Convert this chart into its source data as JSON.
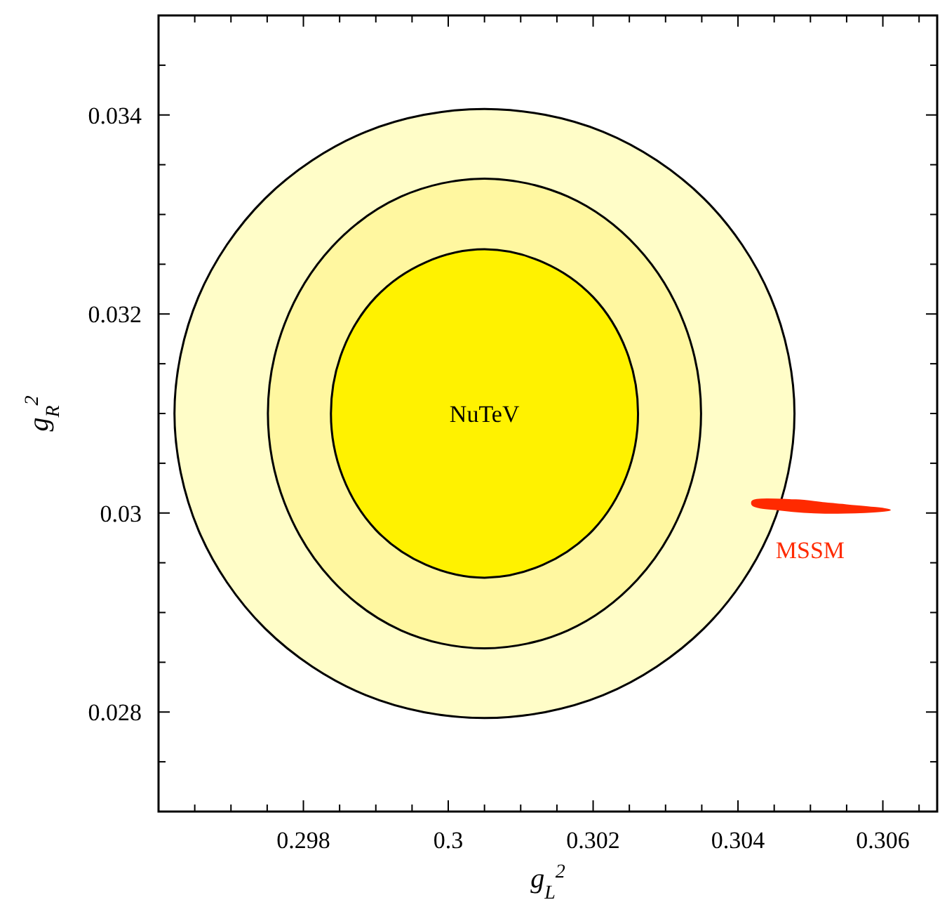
{
  "chart_data": {
    "type": "area",
    "xlabel": "g$_{L}$$^{2}$",
    "ylabel": "g$_{R}$$^{2}$",
    "xlim": [
      0.296,
      0.30675
    ],
    "ylim": [
      0.027,
      0.035
    ],
    "xticks": [
      {
        "value": 0.2965,
        "label": null
      },
      {
        "value": 0.297,
        "label": null
      },
      {
        "value": 0.2975,
        "label": null
      },
      0.298,
      {
        "value": 0.2985,
        "label": null
      },
      {
        "value": 0.299,
        "label": null
      },
      {
        "value": 0.2995,
        "label": null
      },
      0.3,
      {
        "value": 0.3005,
        "label": null
      },
      {
        "value": 0.301,
        "label": null
      },
      {
        "value": 0.3015,
        "label": null
      },
      0.302,
      {
        "value": 0.3025,
        "label": null
      },
      {
        "value": 0.303,
        "label": null
      },
      {
        "value": 0.3035,
        "label": null
      },
      0.304,
      {
        "value": 0.3045,
        "label": null
      },
      {
        "value": 0.305,
        "label": null
      },
      {
        "value": 0.3055,
        "label": null
      },
      0.306,
      {
        "value": 0.3065,
        "label": null
      }
    ],
    "yticks": [
      {
        "value": 0.0275,
        "label": null
      },
      0.028,
      {
        "value": 0.0285,
        "label": null
      },
      {
        "value": 0.029,
        "label": null
      },
      {
        "value": 0.0295,
        "label": null
      },
      0.03,
      {
        "value": 0.0305,
        "label": null
      },
      {
        "value": 0.031,
        "label": null
      },
      {
        "value": 0.0315,
        "label": null
      },
      0.032,
      {
        "value": 0.0325,
        "label": null
      },
      {
        "value": 0.033,
        "label": null
      },
      {
        "value": 0.0335,
        "label": null
      },
      0.034,
      {
        "value": 0.0345,
        "label": null
      }
    ],
    "series": [
      {
        "color": "#fffdc8",
        "x": [
          0.30478,
          0.30445,
          0.30353,
          0.30214,
          0.3005,
          0.29886,
          0.29747,
          0.29655,
          0.29622,
          0.29655,
          0.29747,
          0.29886,
          0.3005,
          0.30214,
          0.30353,
          0.30445
        ],
        "values": [
          0.031,
          0.03217,
          0.03316,
          0.03383,
          0.03406,
          0.03383,
          0.03316,
          0.03217,
          0.031,
          0.02983,
          0.02884,
          0.02817,
          0.02794,
          0.02817,
          0.02884,
          0.02983
        ]
      },
      {
        "color": "#fff7a0",
        "x": [
          0.30349,
          0.30326,
          0.30261,
          0.30165,
          0.3005,
          0.29935,
          0.29839,
          0.29774,
          0.29751,
          0.29774,
          0.29839,
          0.29935,
          0.3005,
          0.30165,
          0.30261,
          0.30326
        ],
        "values": [
          0.031,
          0.0319,
          0.03267,
          0.03318,
          0.03336,
          0.03318,
          0.03267,
          0.0319,
          0.031,
          0.0301,
          0.02933,
          0.02882,
          0.02864,
          0.02882,
          0.02933,
          0.0301
        ]
      },
      {
        "color": "#fff200",
        "x": [
          0.30262,
          0.30246,
          0.302,
          0.30131,
          0.3005,
          0.29969,
          0.299,
          0.29854,
          0.29838,
          0.29854,
          0.299,
          0.29969,
          0.3005,
          0.30131,
          0.302,
          0.30246
        ],
        "values": [
          0.031,
          0.03163,
          0.03217,
          0.03252,
          0.03265,
          0.03252,
          0.03217,
          0.03163,
          0.031,
          0.03037,
          0.02983,
          0.02948,
          0.02935,
          0.02948,
          0.02983,
          0.03037
        ]
      },
      {
        "name": "MSSM",
        "color": "#ff2a00",
        "x": [
          0.3042,
          0.3048,
          0.3052,
          0.3061,
          0.3052,
          0.3046,
          0.3042
        ],
        "values": [
          0.03012,
          0.03013,
          0.0301,
          0.03003,
          0.03,
          0.03003,
          0.03008
        ]
      }
    ],
    "annotations": [
      "NuTeV"
    ]
  }
}
